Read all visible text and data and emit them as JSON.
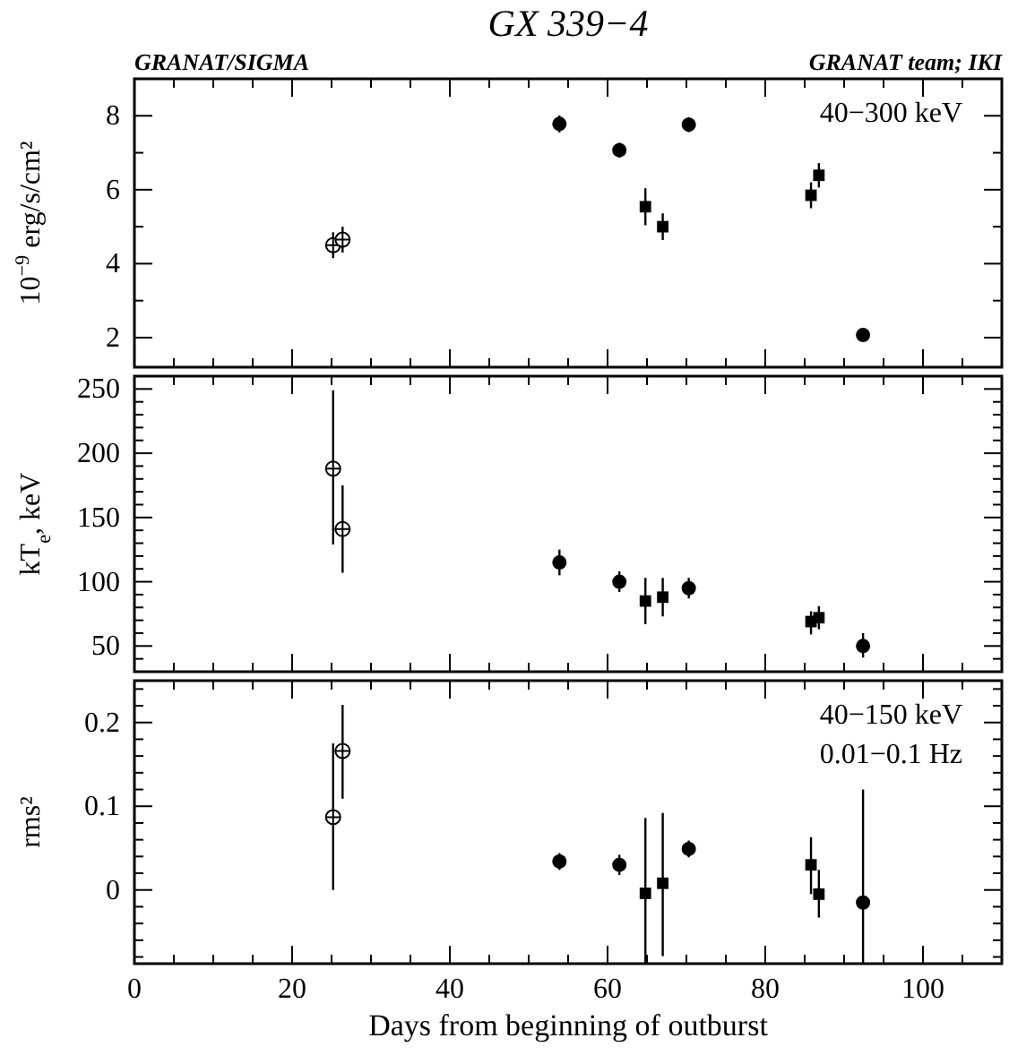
{
  "chart_data": [
    {
      "type": "scatter",
      "title": "GX 339−4",
      "ylabel": "10$^{−9}$ erg/s/cm²",
      "annotations": [
        "GRANAT/SIGMA",
        "GRANAT team; IKI",
        "40−300 keV"
      ],
      "xlim": [
        0,
        110
      ],
      "xticks": [
        0,
        {
          "value": 5,
          "label": null
        },
        20,
        {
          "value": 10,
          "label": null
        },
        {
          "value": 15,
          "label": null
        },
        {
          "value": 25,
          "label": null
        },
        {
          "value": 30,
          "label": null
        },
        {
          "value": 35,
          "label": null
        },
        40,
        {
          "value": 45,
          "label": null
        },
        {
          "value": 50,
          "label": null
        },
        {
          "value": 55,
          "label": null
        },
        60,
        {
          "value": 65,
          "label": null
        },
        {
          "value": 70,
          "label": null
        },
        {
          "value": 75,
          "label": null
        },
        80,
        {
          "value": 85,
          "label": null
        },
        {
          "value": 90,
          "label": null
        },
        {
          "value": 95,
          "label": null
        },
        100,
        {
          "value": 105,
          "label": null
        }
      ],
      "ylim": [
        1.2,
        9
      ],
      "yticks": [
        2,
        {
          "value": 3,
          "label": null
        },
        4,
        {
          "value": 5,
          "label": null
        },
        6,
        {
          "value": 7,
          "label": null
        },
        8
      ],
      "tick_labels": "y",
      "grid": false,
      "series": [
        {
          "marker": "circle",
          "color": "#000000",
          "x": [
            25.2,
            26.4
          ],
          "values": [
            4.5,
            4.65
          ],
          "errors": [
            0.35,
            0.35
          ]
        },
        {
          "marker": "circle",
          "color": "#000000",
          "x": [
            53.9,
            61.5,
            70.3,
            92.4
          ],
          "values": [
            7.78,
            7.07,
            7.76,
            2.07
          ],
          "errors": [
            0.23,
            0.2,
            0.2,
            0.15
          ]
        },
        {
          "marker": "square",
          "color": "#000000",
          "x": [
            64.8,
            67.0,
            85.8,
            86.8
          ],
          "values": [
            5.54,
            5.0,
            5.85,
            6.39
          ],
          "errors": [
            0.5,
            0.36,
            0.35,
            0.33
          ]
        }
      ]
    },
    {
      "type": "scatter",
      "ylabel": "kT$_{e}$, keV",
      "xlim": [
        0,
        110
      ],
      "xticks": [
        0,
        {
          "value": 5,
          "label": null
        },
        20,
        {
          "value": 10,
          "label": null
        },
        {
          "value": 15,
          "label": null
        },
        {
          "value": 25,
          "label": null
        },
        {
          "value": 30,
          "label": null
        },
        {
          "value": 35,
          "label": null
        },
        40,
        {
          "value": 45,
          "label": null
        },
        {
          "value": 50,
          "label": null
        },
        {
          "value": 55,
          "label": null
        },
        60,
        {
          "value": 65,
          "label": null
        },
        {
          "value": 70,
          "label": null
        },
        {
          "value": 75,
          "label": null
        },
        80,
        {
          "value": 85,
          "label": null
        },
        {
          "value": 90,
          "label": null
        },
        {
          "value": 95,
          "label": null
        },
        100,
        {
          "value": 105,
          "label": null
        }
      ],
      "ylim": [
        30,
        260
      ],
      "yticks": [
        {
          "value": 40,
          "label": null
        },
        50,
        {
          "value": 60,
          "label": null
        },
        {
          "value": 70,
          "label": null
        },
        {
          "value": 80,
          "label": null
        },
        {
          "value": 90,
          "label": null
        },
        100,
        {
          "value": 110,
          "label": null
        },
        {
          "value": 120,
          "label": null
        },
        {
          "value": 130,
          "label": null
        },
        {
          "value": 140,
          "label": null
        },
        150,
        {
          "value": 160,
          "label": null
        },
        {
          "value": 170,
          "label": null
        },
        {
          "value": 180,
          "label": null
        },
        {
          "value": 190,
          "label": null
        },
        200,
        {
          "value": 210,
          "label": null
        },
        {
          "value": 220,
          "label": null
        },
        {
          "value": 230,
          "label": null
        },
        {
          "value": 240,
          "label": null
        },
        250
      ],
      "tick_labels": "y",
      "grid": false,
      "series": [
        {
          "marker": "circle",
          "color": "#000000",
          "x": [
            25.2,
            26.4
          ],
          "values": [
            188,
            141
          ],
          "errors": [
            [
              129,
              249
            ],
            [
              107,
              175
            ]
          ]
        },
        {
          "marker": "circle",
          "color": "#000000",
          "x": [
            53.9,
            61.5,
            70.3,
            92.4
          ],
          "values": [
            115,
            100,
            95,
            50
          ],
          "errors": [
            10,
            8,
            8,
            [
              41,
              60
            ]
          ]
        },
        {
          "marker": "square",
          "color": "#000000",
          "x": [
            64.8,
            67.0,
            85.8,
            86.8
          ],
          "values": [
            85,
            88,
            69,
            72
          ],
          "errors": [
            [
              67,
              103
            ],
            [
              73,
              103
            ],
            [
              59,
              77
            ],
            [
              63,
              81
            ]
          ]
        }
      ]
    },
    {
      "type": "scatter",
      "ylabel": "rms²",
      "xlabel": "Days from beginning of outburst",
      "annotations": [
        "40−150 keV",
        "0.01−0.1 Hz"
      ],
      "xlim": [
        0,
        110
      ],
      "xticks": [
        0,
        {
          "value": 5,
          "label": null
        },
        20,
        {
          "value": 10,
          "label": null
        },
        {
          "value": 15,
          "label": null
        },
        {
          "value": 25,
          "label": null
        },
        {
          "value": 30,
          "label": null
        },
        {
          "value": 35,
          "label": null
        },
        40,
        {
          "value": 45,
          "label": null
        },
        {
          "value": 50,
          "label": null
        },
        {
          "value": 55,
          "label": null
        },
        60,
        {
          "value": 65,
          "label": null
        },
        {
          "value": 70,
          "label": null
        },
        {
          "value": 75,
          "label": null
        },
        80,
        {
          "value": 85,
          "label": null
        },
        {
          "value": 90,
          "label": null
        },
        {
          "value": 95,
          "label": null
        },
        100,
        {
          "value": 105,
          "label": null
        }
      ],
      "ylim": [
        -0.088,
        0.25
      ],
      "yticks": [
        {
          "value": -0.08,
          "label": null
        },
        {
          "value": -0.06,
          "label": null
        },
        {
          "value": -0.04,
          "label": null
        },
        {
          "value": -0.02,
          "label": null
        },
        0,
        {
          "value": 0.02,
          "label": null
        },
        {
          "value": 0.04,
          "label": null
        },
        {
          "value": 0.06,
          "label": null
        },
        {
          "value": 0.08,
          "label": null
        },
        0.1,
        {
          "value": 0.12,
          "label": null
        },
        {
          "value": 0.14,
          "label": null
        },
        {
          "value": 0.16,
          "label": null
        },
        {
          "value": 0.18,
          "label": null
        },
        0.2,
        {
          "value": 0.22,
          "label": null
        },
        {
          "value": 0.24,
          "label": null
        }
      ],
      "grid": false,
      "series": [
        {
          "marker": "circle",
          "color": "#000000",
          "x": [
            25.2,
            26.4
          ],
          "values": [
            0.087,
            0.166
          ],
          "errors": [
            [
              0,
              0.175
            ],
            [
              0.109,
              0.221
            ]
          ]
        },
        {
          "marker": "circle",
          "color": "#000000",
          "x": [
            53.9,
            61.5,
            70.3,
            92.4
          ],
          "values": [
            0.034,
            0.03,
            0.049,
            -0.015
          ],
          "errors": [
            0.01,
            0.012,
            0.01,
            [
              -0.088,
              0.12
            ]
          ]
        },
        {
          "marker": "square",
          "color": "#000000",
          "x": [
            64.8,
            67.0,
            85.8,
            86.8
          ],
          "values": [
            -0.004,
            0.008,
            0.03,
            -0.005
          ],
          "errors": [
            [
              -0.088,
              0.086
            ],
            [
              -0.079,
              0.092
            ],
            [
              -0.005,
              0.063
            ],
            [
              -0.033,
              0.024
            ]
          ]
        }
      ]
    }
  ]
}
